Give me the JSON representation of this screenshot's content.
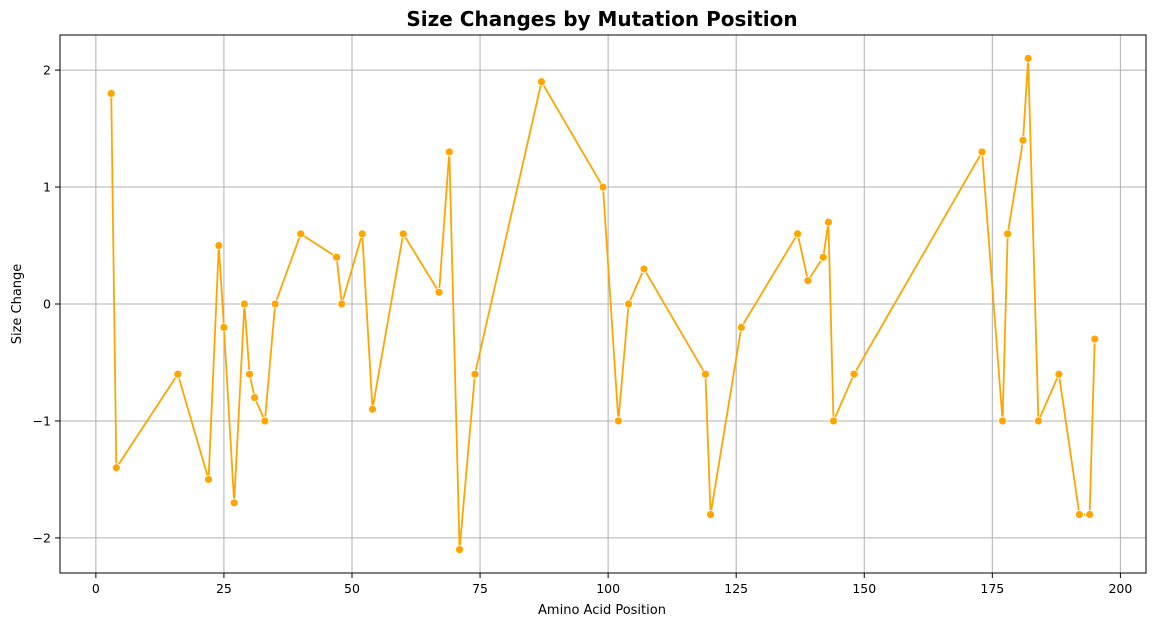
{
  "chart_data": {
    "type": "line",
    "title": "Size Changes by Mutation Position",
    "xlabel": "Amino Acid Position",
    "ylabel": "Size Change",
    "xlim": [
      -7,
      205
    ],
    "ylim": [
      -2.3,
      2.3
    ],
    "xticks": [
      0,
      25,
      50,
      75,
      100,
      125,
      150,
      175,
      200
    ],
    "yticks": [
      -2,
      -1,
      0,
      1,
      2
    ],
    "xtick_labels": [
      "0",
      "25",
      "50",
      "75",
      "100",
      "125",
      "150",
      "175",
      "200"
    ],
    "ytick_labels": [
      "−2",
      "−1",
      "0",
      "1",
      "2"
    ],
    "grid": true,
    "color": "#FFA500",
    "marker": "circle",
    "series": [
      {
        "x": [
          3,
          4,
          16,
          22,
          24,
          25,
          27,
          29,
          30,
          31,
          33,
          35,
          40,
          47,
          48,
          52,
          54,
          60,
          67,
          69,
          71,
          74,
          87,
          99,
          102,
          104,
          107,
          119,
          120,
          126,
          137,
          139,
          142,
          143,
          144,
          148,
          173,
          177,
          178,
          181,
          182,
          184,
          188,
          192,
          194,
          195
        ],
        "y": [
          1.8,
          -1.4,
          -0.6,
          -1.5,
          0.5,
          -0.2,
          -1.7,
          0.0,
          -0.6,
          -0.8,
          -1.0,
          0.0,
          0.6,
          0.4,
          0.0,
          0.6,
          -0.9,
          0.6,
          0.1,
          1.3,
          -2.1,
          -0.6,
          1.9,
          1.0,
          -1.0,
          0.0,
          0.3,
          -0.6,
          -1.8,
          -0.2,
          0.6,
          0.2,
          0.4,
          0.7,
          -1.0,
          -0.6,
          1.3,
          -1.0,
          0.6,
          1.4,
          2.1,
          -1.0,
          -0.6,
          -1.8,
          -1.8,
          -0.3
        ]
      }
    ]
  }
}
